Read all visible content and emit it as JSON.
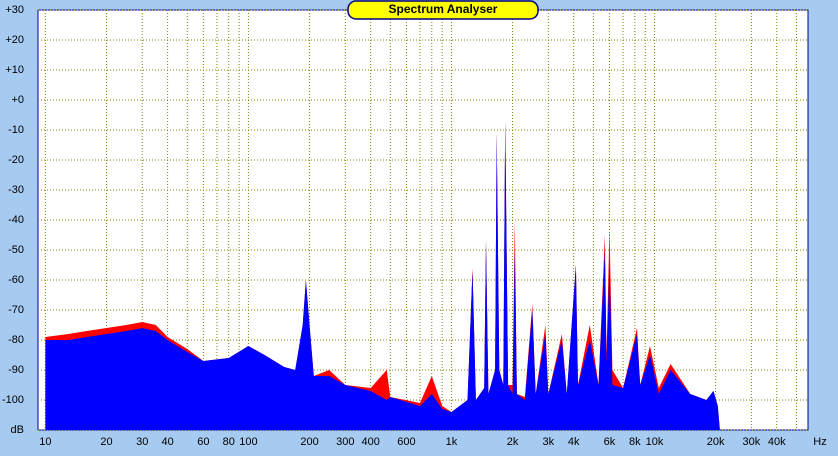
{
  "chart_data": {
    "type": "area",
    "title": "Spectrum Analyser",
    "x_label": "Hz",
    "log_x": true,
    "grid": true,
    "xlim": [
      9.2,
      57000
    ],
    "ylim": [
      -110,
      30
    ],
    "xticks": [
      10,
      20,
      30,
      40,
      60,
      80,
      100,
      200,
      300,
      400,
      600,
      {
        "value": 1000,
        "label": "1k"
      },
      {
        "value": 2000,
        "label": "2k"
      },
      {
        "value": 3000,
        "label": "3k"
      },
      {
        "value": 4000,
        "label": "4k"
      },
      {
        "value": 6000,
        "label": "6k"
      },
      {
        "value": 8000,
        "label": "8k"
      },
      {
        "value": 10000,
        "label": "10k"
      },
      {
        "value": 20000,
        "label": "20k"
      },
      {
        "value": 30000,
        "label": "30k"
      },
      {
        "value": 40000,
        "label": "40k"
      }
    ],
    "x_minor_grid": [
      50,
      70,
      90,
      500,
      700,
      800,
      900,
      5000,
      7000,
      9000,
      50000
    ],
    "yticks": [
      {
        "value": -110,
        "label": "dB"
      },
      -100,
      -90,
      -80,
      -70,
      -60,
      -50,
      -40,
      -30,
      -20,
      -10,
      {
        "value": 0,
        "label": "+0"
      },
      {
        "value": 10,
        "label": "+10"
      },
      {
        "value": 20,
        "label": "+20"
      },
      {
        "value": 30,
        "label": "+30"
      }
    ],
    "x": [
      10,
      13,
      16,
      20,
      25,
      30,
      35,
      40,
      50,
      60,
      80,
      100,
      120,
      150,
      170,
      185,
      192,
      200,
      210,
      250,
      300,
      400,
      480,
      500,
      700,
      800,
      900,
      1000,
      1200,
      1270,
      1320,
      1450,
      1480,
      1520,
      1640,
      1670,
      1720,
      1800,
      1840,
      1900,
      2000,
      2050,
      2100,
      2300,
      2500,
      2600,
      2900,
      3000,
      3500,
      3700,
      4100,
      4200,
      4800,
      5300,
      5700,
      5800,
      6000,
      6200,
      7000,
      8200,
      8500,
      9500,
      10500,
      12000,
      15000,
      18000,
      19500,
      20500,
      21000
    ],
    "series": [
      {
        "color": "#ff0000",
        "values": [
          -79,
          -78,
          -77,
          -76,
          -75,
          -74,
          -75,
          -79,
          -83,
          -87,
          -86,
          -82,
          -85,
          -89,
          -90,
          -75,
          -60,
          -75,
          -92,
          -90,
          -95,
          -96,
          -90,
          -99,
          -101,
          -92,
          -102,
          -104,
          -100,
          -56,
          -100,
          -96,
          -47,
          -98,
          -90,
          -11,
          -90,
          -95,
          -7,
          -95,
          -95,
          -40,
          -98,
          -99,
          -68,
          -98,
          -75,
          -98,
          -78,
          -98,
          -55,
          -95,
          -75,
          -95,
          -45,
          -85,
          -43,
          -90,
          -96,
          -76,
          -95,
          -82,
          -96,
          -88,
          -98,
          -100,
          -97,
          -102,
          -110
        ]
      },
      {
        "color": "#0000ff",
        "values": [
          -80,
          -80,
          -79,
          -78,
          -77,
          -76,
          -77,
          -80,
          -84,
          -87,
          -86,
          -82,
          -85,
          -89,
          -90,
          -75,
          -60,
          -75,
          -92,
          -92,
          -95,
          -97,
          -100,
          -99,
          -102,
          -98,
          -103,
          -104,
          -100,
          -57,
          -100,
          -96,
          -47,
          -98,
          -90,
          -11,
          -90,
          -95,
          -7,
          -95,
          -98,
          -50,
          -98,
          -100,
          -70,
          -98,
          -78,
          -98,
          -80,
          -98,
          -55,
          -95,
          -80,
          -95,
          -50,
          -88,
          -55,
          -95,
          -96,
          -78,
          -95,
          -85,
          -98,
          -90,
          -98,
          -100,
          -97,
          -102,
          -110
        ]
      }
    ]
  }
}
